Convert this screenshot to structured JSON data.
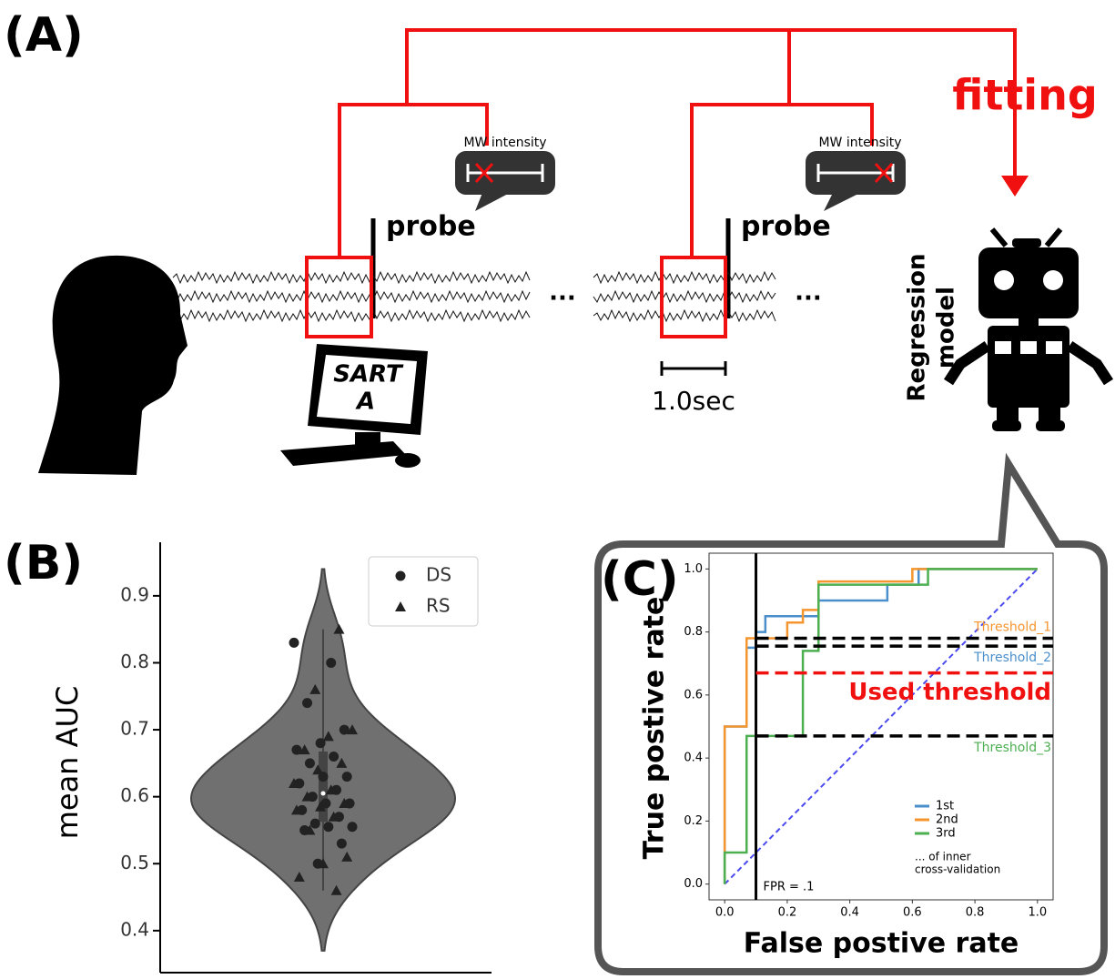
{
  "diagram": {
    "label": "(A)",
    "fitting": "fitting",
    "bubble_1": "MW intensity",
    "bubble_2": "MW intensity",
    "probe_1": "probe",
    "probe_2": "probe",
    "ellipsis_1": "...",
    "ellipsis_2": "...",
    "screen_line_1": "SART",
    "screen_line_2": "A",
    "scale_bar": "1.0sec",
    "model_line_1": "Regression",
    "model_line_2": "model"
  },
  "chart_data": [
    {
      "type": "violin",
      "panel_label": "(B)",
      "y_label": "mean AUC",
      "ylim": [
        0.34,
        0.98
      ],
      "yticks": [
        0.4,
        0.5,
        0.6,
        0.7,
        0.8,
        0.9
      ],
      "violin_color": "#707070",
      "legend": "upper right",
      "series": [
        {
          "name": "DS",
          "marker": "circle",
          "color": "#222222",
          "values": [
            0.83,
            0.8,
            0.74,
            0.7,
            0.68,
            0.67,
            0.66,
            0.65,
            0.63,
            0.63,
            0.62,
            0.61,
            0.6,
            0.59,
            0.59,
            0.58,
            0.57,
            0.56,
            0.555,
            0.555,
            0.55,
            0.53,
            0.5
          ]
        },
        {
          "name": "RS",
          "marker": "triangle",
          "color": "#222222",
          "values": [
            0.85,
            0.76,
            0.7,
            0.69,
            0.67,
            0.65,
            0.64,
            0.62,
            0.61,
            0.6,
            0.59,
            0.585,
            0.58,
            0.57,
            0.55,
            0.51,
            0.5,
            0.48,
            0.46
          ]
        }
      ]
    },
    {
      "type": "line",
      "panel_label": "(C)",
      "x_label": "False postive rate",
      "y_label": "True postive rate",
      "xlim": [
        -0.05,
        1.05
      ],
      "ylim": [
        -0.05,
        1.05
      ],
      "xticks": [
        {
          "value": 0,
          "label": "0.0"
        },
        0.2,
        0.4,
        0.6,
        0.8,
        {
          "value": 1,
          "label": "1.0"
        }
      ],
      "yticks": [
        {
          "value": 0,
          "label": "0.0"
        },
        0.2,
        0.4,
        0.6,
        0.8,
        {
          "value": 1,
          "label": "1.0"
        }
      ],
      "legend": "lower right",
      "legend_note": [
        "... of inner",
        "cross-validation"
      ],
      "series": [
        {
          "name": "1st",
          "color": "#4a8fcc",
          "x": [
            0,
            0,
            0.07,
            0.07,
            0.1,
            0.1,
            0.13,
            0.13,
            0.3,
            0.3,
            0.52,
            0.52,
            0.62,
            0.62,
            1
          ],
          "y": [
            0,
            0.5,
            0.5,
            0.75,
            0.75,
            0.8,
            0.8,
            0.85,
            0.85,
            0.9,
            0.9,
            0.95,
            0.95,
            1,
            1
          ]
        },
        {
          "name": "2nd",
          "color": "#f5952e",
          "x": [
            0,
            0,
            0.07,
            0.07,
            0.2,
            0.2,
            0.25,
            0.25,
            0.3,
            0.3,
            0.6,
            0.6,
            1
          ],
          "y": [
            0,
            0.5,
            0.5,
            0.78,
            0.78,
            0.83,
            0.83,
            0.87,
            0.87,
            0.96,
            0.96,
            1,
            1
          ]
        },
        {
          "name": "3rd",
          "color": "#4caf50",
          "x": [
            0,
            0,
            0.07,
            0.07,
            0.25,
            0.25,
            0.3,
            0.3,
            0.65,
            0.65,
            1
          ],
          "y": [
            0,
            0.1,
            0.1,
            0.47,
            0.47,
            0.74,
            0.74,
            0.95,
            0.95,
            1,
            1
          ]
        }
      ],
      "diagonal": {
        "x": [
          0,
          1
        ],
        "y": [
          0,
          1
        ],
        "color": "#4a4af0"
      },
      "fpr_line": {
        "x": 0.1,
        "label": "FPR = .1"
      },
      "thresholds": [
        {
          "y": 0.78,
          "label": "Threshold_1",
          "color": "#f5952e",
          "line_color": "#000000"
        },
        {
          "y": 0.755,
          "label": "Threshold_2",
          "color": "#4a8fcc",
          "line_color": "#000000"
        },
        {
          "y": 0.67,
          "label": "Used threshold",
          "color": "#f01010",
          "line_color": "#f01010"
        },
        {
          "y": 0.47,
          "label": "Threshold_3",
          "color": "#4caf50",
          "line_color": "#000000"
        }
      ]
    }
  ]
}
